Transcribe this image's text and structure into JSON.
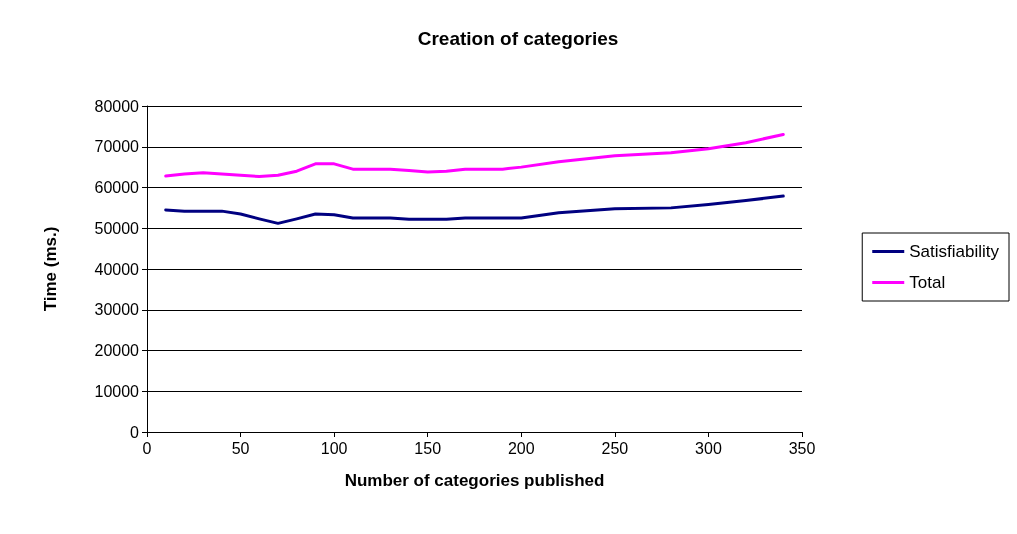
{
  "chart_data": {
    "type": "line",
    "title": "Creation of categories",
    "xlabel": "Number of categories published",
    "ylabel": "Time (ms.)",
    "xlim": [
      0,
      350
    ],
    "xticks": [
      0,
      50,
      100,
      150,
      200,
      250,
      300,
      350
    ],
    "ylim": [
      0,
      80000
    ],
    "yticks": [
      0,
      10000,
      20000,
      30000,
      40000,
      50000,
      60000,
      70000,
      80000
    ],
    "grid": "y",
    "legend": "right",
    "marker": "none",
    "line_style": "solid",
    "series": [
      {
        "name": "Satisfiability",
        "color": "#000080",
        "x": [
          10,
          20,
          30,
          40,
          50,
          60,
          70,
          80,
          90,
          100,
          110,
          120,
          130,
          140,
          150,
          160,
          170,
          180,
          190,
          200,
          220,
          250,
          280,
          300,
          320,
          340
        ],
        "values": [
          54500,
          54200,
          54200,
          54200,
          53500,
          52300,
          51200,
          52300,
          53500,
          53300,
          52500,
          52500,
          52500,
          52200,
          52200,
          52200,
          52500,
          52500,
          52500,
          52500,
          53800,
          54800,
          55000,
          55800,
          56800,
          57900
        ]
      },
      {
        "name": "Total",
        "color": "#ff00ff",
        "x": [
          10,
          20,
          30,
          40,
          50,
          60,
          70,
          80,
          90,
          100,
          110,
          120,
          130,
          140,
          150,
          160,
          170,
          180,
          190,
          200,
          220,
          250,
          280,
          300,
          320,
          340
        ],
        "values": [
          62800,
          63300,
          63600,
          63300,
          63000,
          62700,
          63000,
          64000,
          65800,
          65800,
          64500,
          64500,
          64500,
          64200,
          63800,
          64000,
          64500,
          64500,
          64500,
          65000,
          66300,
          67800,
          68500,
          69500,
          71000,
          73000
        ]
      }
    ]
  }
}
